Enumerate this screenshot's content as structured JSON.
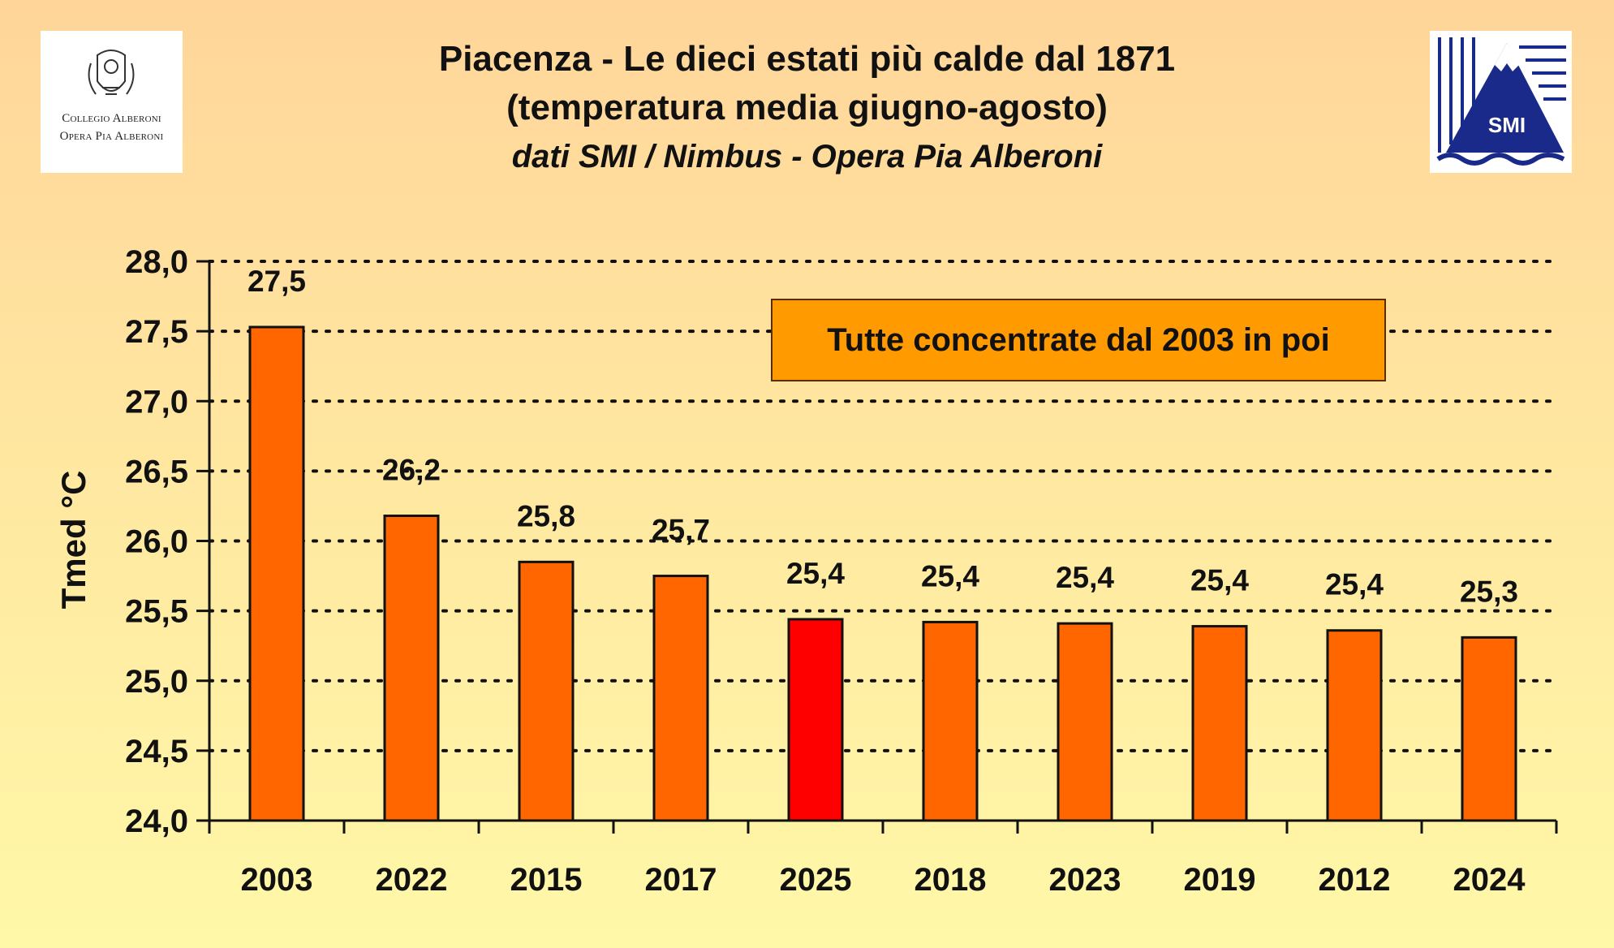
{
  "header": {
    "title_line1": "Piacenza - Le dieci estati più calde dal 1871",
    "title_line2": "(temperatura media giugno-agosto)",
    "subtitle": "dati SMI / Nimbus - Opera Pia Alberoni"
  },
  "logos": {
    "left_line1": "Collegio Alberoni",
    "left_line2": "Opera Pia Alberoni",
    "right_text": "SMI"
  },
  "annotation": "Tutte concentrate dal 2003 in poi",
  "chart_data": {
    "type": "bar",
    "ylabel": "Tmed °C",
    "xlabel": "",
    "ylim": [
      24.0,
      28.0
    ],
    "ytick_labels": [
      "24,0",
      "24,5",
      "25,0",
      "25,5",
      "26,0",
      "26,5",
      "27,0",
      "27,5",
      "28,0"
    ],
    "yticks": [
      24.0,
      24.5,
      25.0,
      25.5,
      26.0,
      26.5,
      27.0,
      27.5,
      28.0
    ],
    "grid": "dotted horizontal",
    "categories": [
      "2003",
      "2022",
      "2015",
      "2017",
      "2025",
      "2018",
      "2023",
      "2019",
      "2012",
      "2024"
    ],
    "values": [
      27.53,
      26.18,
      25.85,
      25.75,
      25.44,
      25.42,
      25.41,
      25.39,
      25.36,
      25.31
    ],
    "value_labels": [
      "27,5",
      "26,2",
      "25,8",
      "25,7",
      "25,4",
      "25,4",
      "25,4",
      "25,4",
      "25,4",
      "25,3"
    ],
    "colors": [
      "#ff6600",
      "#ff6600",
      "#ff6600",
      "#ff6600",
      "#ff0000",
      "#ff6600",
      "#ff6600",
      "#ff6600",
      "#ff6600",
      "#ff6600"
    ]
  }
}
